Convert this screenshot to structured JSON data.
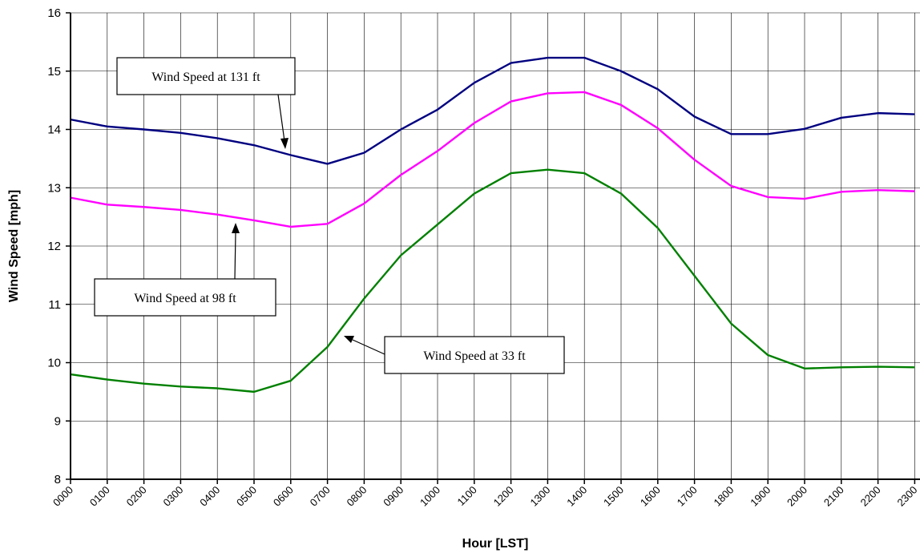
{
  "chart_data": {
    "type": "line",
    "title": "",
    "xlabel": "Hour [LST]",
    "ylabel": "Wind Speed [mph]",
    "ylim": [
      8,
      16
    ],
    "yticks": [
      8,
      9,
      10,
      11,
      12,
      13,
      14,
      15,
      16
    ],
    "grid": true,
    "categories": [
      "0000",
      "0100",
      "0200",
      "0300",
      "0400",
      "0500",
      "0600",
      "0700",
      "0800",
      "0900",
      "1000",
      "1100",
      "1200",
      "1300",
      "1400",
      "1500",
      "1600",
      "1700",
      "1800",
      "1900",
      "2000",
      "2100",
      "2200",
      "2300"
    ],
    "series": [
      {
        "name": "Wind Speed at 131 ft",
        "color": "#000080",
        "values": [
          14.17,
          14.05,
          14.0,
          13.94,
          13.85,
          13.73,
          13.56,
          13.41,
          13.6,
          14.0,
          14.34,
          14.8,
          15.14,
          15.23,
          15.23,
          15.0,
          14.69,
          14.22,
          13.92,
          13.92,
          14.01,
          14.2,
          14.28,
          14.26
        ]
      },
      {
        "name": "Wind Speed at 98 ft",
        "color": "#ff00ff",
        "values": [
          12.83,
          12.71,
          12.67,
          12.62,
          12.54,
          12.44,
          12.33,
          12.38,
          12.73,
          13.22,
          13.63,
          14.11,
          14.48,
          14.62,
          14.64,
          14.42,
          14.02,
          13.48,
          13.03,
          12.84,
          12.81,
          12.93,
          12.96,
          12.94
        ]
      },
      {
        "name": "Wind Speed at 33 ft",
        "color": "#008000",
        "values": [
          9.8,
          9.71,
          9.64,
          9.59,
          9.56,
          9.5,
          9.69,
          10.27,
          11.1,
          11.84,
          12.37,
          12.9,
          13.25,
          13.31,
          13.25,
          12.9,
          12.31,
          11.49,
          10.67,
          10.13,
          9.9,
          9.92,
          9.93,
          9.92
        ]
      }
    ],
    "annotations": [
      {
        "text": "Wind Speed at 131 ft",
        "series": 0
      },
      {
        "text": "Wind Speed at 98 ft",
        "series": 1
      },
      {
        "text": "Wind Speed at 33 ft",
        "series": 2
      }
    ]
  }
}
